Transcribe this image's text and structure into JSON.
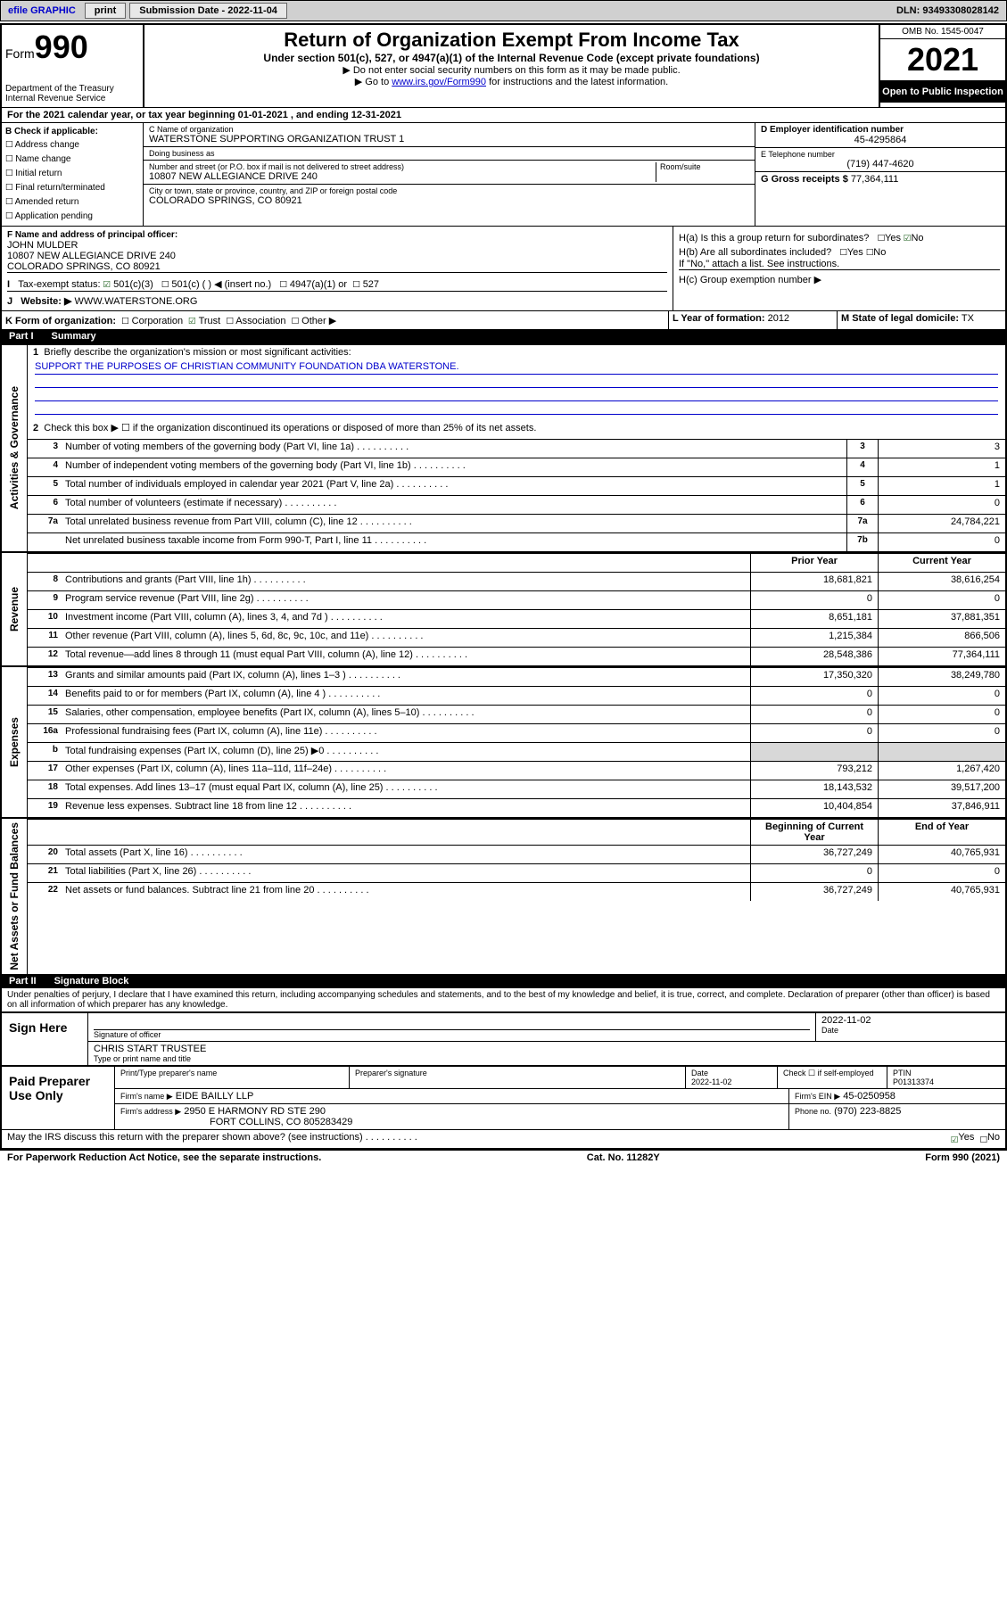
{
  "topbar": {
    "efile": "efile GRAPHIC",
    "print": "print",
    "subdate_label": "Submission Date - 2022-11-04",
    "dln": "DLN: 93493308028142"
  },
  "header": {
    "form_word": "Form",
    "form_no": "990",
    "dept": "Department of the Treasury\nInternal Revenue Service",
    "title": "Return of Organization Exempt From Income Tax",
    "subtitle": "Under section 501(c), 527, or 4947(a)(1) of the Internal Revenue Code (except private foundations)",
    "instr1": "▶ Do not enter social security numbers on this form as it may be made public.",
    "instr2_pre": "▶ Go to ",
    "instr2_link": "www.irs.gov/Form990",
    "instr2_post": " for instructions and the latest information.",
    "omb": "OMB No. 1545-0047",
    "year": "2021",
    "open": "Open to Public\nInspection"
  },
  "line_a": "For the 2021 calendar year, or tax year beginning 01-01-2021   , and ending 12-31-2021",
  "section_b": {
    "label": "B Check if applicable:",
    "opts": [
      "Address change",
      "Name change",
      "Initial return",
      "Final return/terminated",
      "Amended return",
      "Application pending"
    ]
  },
  "section_c": {
    "name_label": "C Name of organization",
    "name": "WATERSTONE SUPPORTING ORGANIZATION TRUST 1",
    "dba_label": "Doing business as",
    "dba": "",
    "street_label": "Number and street (or P.O. box if mail is not delivered to street address)",
    "room_label": "Room/suite",
    "street": "10807 NEW ALLEGIANCE DRIVE 240",
    "city_label": "City or town, state or province, country, and ZIP or foreign postal code",
    "city": "COLORADO SPRINGS, CO  80921"
  },
  "section_d": {
    "label": "D Employer identification number",
    "ein": "45-4295864",
    "e_label": "E Telephone number",
    "phone": "(719) 447-4620",
    "g_label": "G Gross receipts $",
    "gross": "77,364,111"
  },
  "section_f": {
    "label": "F  Name and address of principal officer:",
    "name": "JOHN MULDER",
    "addr1": "10807 NEW ALLEGIANCE DRIVE 240",
    "addr2": "COLORADO SPRINGS, CO  80921"
  },
  "section_h": {
    "ha": "H(a)  Is this a group return for subordinates?",
    "hb": "H(b)  Are all subordinates included?",
    "hb_note": "If \"No,\" attach a list. See instructions.",
    "hc": "H(c)  Group exemption number ▶",
    "yes": "Yes",
    "no": "No"
  },
  "line_i": {
    "label": "Tax-exempt status:",
    "c3": "501(c)(3)",
    "c": "501(c) (  ) ◀ (insert no.)",
    "a1": "4947(a)(1) or",
    "n527": "527"
  },
  "line_j": {
    "label": "Website: ▶",
    "value": "WWW.WATERSTONE.ORG"
  },
  "line_k": {
    "label": "K Form of organization:",
    "corp": "Corporation",
    "trust": "Trust",
    "assoc": "Association",
    "other": "Other ▶"
  },
  "line_l": {
    "label": "L Year of formation:",
    "value": "2012"
  },
  "line_m": {
    "label": "M State of legal domicile:",
    "value": "TX"
  },
  "part1": {
    "no": "Part I",
    "title": "Summary"
  },
  "summary": {
    "q1": "Briefly describe the organization's mission or most significant activities:",
    "q1_ans": "SUPPORT THE PURPOSES OF CHRISTIAN COMMUNITY FOUNDATION DBA WATERSTONE.",
    "q2": "Check this box ▶ ☐  if the organization discontinued its operations or disposed of more than 25% of its net assets.",
    "labels": {
      "activities": "Activities & Governance",
      "revenue": "Revenue",
      "expenses": "Expenses",
      "net": "Net Assets or Fund Balances"
    },
    "col_prior": "Prior Year",
    "col_curr": "Current Year",
    "col_beg": "Beginning of Current Year",
    "col_end": "End of Year",
    "rows_gov": [
      {
        "n": "3",
        "t": "Number of voting members of the governing body (Part VI, line 1a)",
        "k": "3",
        "v": "3"
      },
      {
        "n": "4",
        "t": "Number of independent voting members of the governing body (Part VI, line 1b)",
        "k": "4",
        "v": "1"
      },
      {
        "n": "5",
        "t": "Total number of individuals employed in calendar year 2021 (Part V, line 2a)",
        "k": "5",
        "v": "1"
      },
      {
        "n": "6",
        "t": "Total number of volunteers (estimate if necessary)",
        "k": "6",
        "v": "0"
      },
      {
        "n": "7a",
        "t": "Total unrelated business revenue from Part VIII, column (C), line 12",
        "k": "7a",
        "v": "24,784,221"
      },
      {
        "n": "",
        "t": "Net unrelated business taxable income from Form 990-T, Part I, line 11",
        "k": "7b",
        "v": "0"
      }
    ],
    "rows_rev": [
      {
        "n": "8",
        "t": "Contributions and grants (Part VIII, line 1h)",
        "p": "18,681,821",
        "c": "38,616,254"
      },
      {
        "n": "9",
        "t": "Program service revenue (Part VIII, line 2g)",
        "p": "0",
        "c": "0"
      },
      {
        "n": "10",
        "t": "Investment income (Part VIII, column (A), lines 3, 4, and 7d )",
        "p": "8,651,181",
        "c": "37,881,351"
      },
      {
        "n": "11",
        "t": "Other revenue (Part VIII, column (A), lines 5, 6d, 8c, 9c, 10c, and 11e)",
        "p": "1,215,384",
        "c": "866,506"
      },
      {
        "n": "12",
        "t": "Total revenue—add lines 8 through 11 (must equal Part VIII, column (A), line 12)",
        "p": "28,548,386",
        "c": "77,364,111"
      }
    ],
    "rows_exp": [
      {
        "n": "13",
        "t": "Grants and similar amounts paid (Part IX, column (A), lines 1–3 )",
        "p": "17,350,320",
        "c": "38,249,780"
      },
      {
        "n": "14",
        "t": "Benefits paid to or for members (Part IX, column (A), line 4 )",
        "p": "0",
        "c": "0"
      },
      {
        "n": "15",
        "t": "Salaries, other compensation, employee benefits (Part IX, column (A), lines 5–10)",
        "p": "0",
        "c": "0"
      },
      {
        "n": "16a",
        "t": "Professional fundraising fees (Part IX, column (A), line 11e)",
        "p": "0",
        "c": "0"
      },
      {
        "n": "b",
        "t": "Total fundraising expenses (Part IX, column (D), line 25) ▶0",
        "p": "",
        "c": "",
        "shade": true
      },
      {
        "n": "17",
        "t": "Other expenses (Part IX, column (A), lines 11a–11d, 11f–24e)",
        "p": "793,212",
        "c": "1,267,420"
      },
      {
        "n": "18",
        "t": "Total expenses. Add lines 13–17 (must equal Part IX, column (A), line 25)",
        "p": "18,143,532",
        "c": "39,517,200"
      },
      {
        "n": "19",
        "t": "Revenue less expenses. Subtract line 18 from line 12",
        "p": "10,404,854",
        "c": "37,846,911"
      }
    ],
    "rows_net": [
      {
        "n": "20",
        "t": "Total assets (Part X, line 16)",
        "p": "36,727,249",
        "c": "40,765,931"
      },
      {
        "n": "21",
        "t": "Total liabilities (Part X, line 26)",
        "p": "0",
        "c": "0"
      },
      {
        "n": "22",
        "t": "Net assets or fund balances. Subtract line 21 from line 20",
        "p": "36,727,249",
        "c": "40,765,931"
      }
    ]
  },
  "part2": {
    "no": "Part II",
    "title": "Signature Block"
  },
  "penalty": "Under penalties of perjury, I declare that I have examined this return, including accompanying schedules and statements, and to the best of my knowledge and belief, it is true, correct, and complete. Declaration of preparer (other than officer) is based on all information of which preparer has any knowledge.",
  "sign": {
    "here": "Sign Here",
    "sig_label": "Signature of officer",
    "date_label": "Date",
    "date": "2022-11-02",
    "name": "CHRIS START  TRUSTEE",
    "name_label": "Type or print name and title"
  },
  "paid": {
    "title": "Paid Preparer Use Only",
    "col1": "Print/Type preparer's name",
    "col2": "Preparer's signature",
    "col3": "Date",
    "date": "2022-11-02",
    "col4": "Check ☐ if self-employed",
    "ptin_label": "PTIN",
    "ptin": "P01313374",
    "firm_label": "Firm's name    ▶",
    "firm": "EIDE BAILLY LLP",
    "ein_label": "Firm's EIN ▶",
    "ein": "45-0250958",
    "addr_label": "Firm's address ▶",
    "addr1": "2950 E HARMONY RD STE 290",
    "addr2": "FORT COLLINS, CO  805283429",
    "phone_label": "Phone no.",
    "phone": "(970) 223-8825"
  },
  "discuss": "May the IRS discuss this return with the preparer shown above? (see instructions)",
  "footer": {
    "left": "For Paperwork Reduction Act Notice, see the separate instructions.",
    "mid": "Cat. No. 11282Y",
    "right": "Form 990 (2021)"
  }
}
